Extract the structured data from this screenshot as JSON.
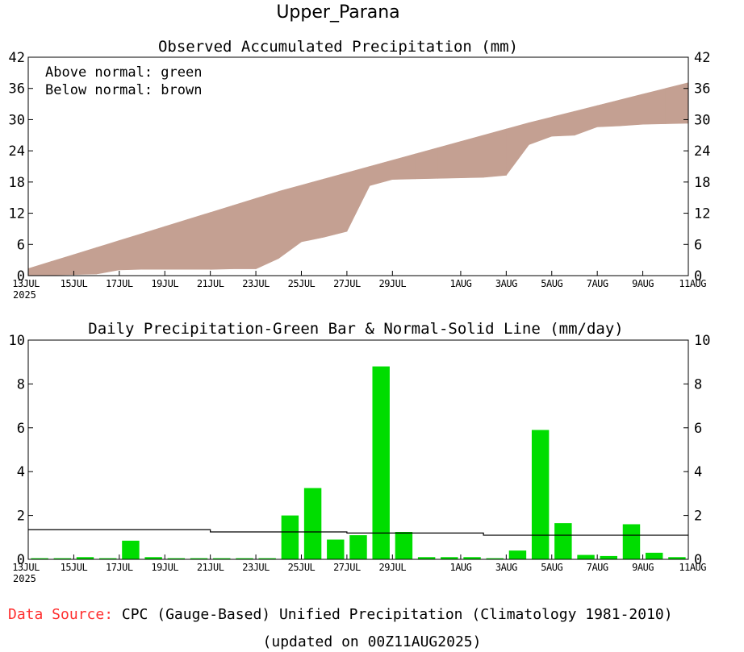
{
  "title": "Upper_Parana",
  "footer": {
    "source_label": "Data Source:",
    "source_text": " CPC (Gauge-Based) Unified Precipitation (Climatology 1981-2010)",
    "updated": "(updated on 00Z11AUG2025)"
  },
  "colors": {
    "below": "#c4a092",
    "above": "#00cc00",
    "bar": "#00dd00",
    "line": "#000000",
    "source_label": "#ff3030"
  },
  "chart_data": [
    {
      "type": "area",
      "title": "Observed Accumulated Precipitation (mm)",
      "legend_lines": [
        "Above normal: green",
        "Below normal: brown"
      ],
      "ylim": [
        0,
        42
      ],
      "yticks": [
        0,
        6,
        12,
        18,
        24,
        30,
        36,
        42
      ],
      "xlim": [
        0,
        29
      ],
      "x_ticks": [
        {
          "x": 0,
          "label": "13JUL"
        },
        {
          "x": 2,
          "label": "15JUL"
        },
        {
          "x": 4,
          "label": "17JUL"
        },
        {
          "x": 6,
          "label": "19JUL"
        },
        {
          "x": 8,
          "label": "21JUL"
        },
        {
          "x": 10,
          "label": "23JUL"
        },
        {
          "x": 12,
          "label": "25JUL"
        },
        {
          "x": 14,
          "label": "27JUL"
        },
        {
          "x": 16,
          "label": "29JUL"
        },
        {
          "x": 19,
          "label": "1AUG"
        },
        {
          "x": 21,
          "label": "3AUG"
        },
        {
          "x": 23,
          "label": "5AUG"
        },
        {
          "x": 25,
          "label": "7AUG"
        },
        {
          "x": 27,
          "label": "9AUG"
        },
        {
          "x": 29,
          "label": "11AUG"
        }
      ],
      "year_label": "2025",
      "series": [
        {
          "name": "Observed accumulated",
          "x": [
            0,
            1,
            2,
            3,
            4,
            5,
            6,
            7,
            8,
            9,
            10,
            11,
            12,
            13,
            14,
            15,
            16,
            17,
            18,
            19,
            20,
            21,
            22,
            23,
            24,
            25,
            26,
            27,
            28,
            29
          ],
          "values": [
            0.1,
            0.1,
            0.2,
            0.3,
            1.1,
            1.2,
            1.2,
            1.2,
            1.2,
            1.3,
            1.3,
            3.3,
            6.5,
            7.4,
            8.5,
            17.3,
            18.5,
            18.6,
            18.7,
            18.8,
            18.9,
            19.3,
            25.2,
            26.8,
            27.0,
            28.6,
            28.8,
            29.1,
            29.2,
            29.3
          ]
        },
        {
          "name": "Normal accumulated",
          "x": [
            0,
            1,
            2,
            3,
            4,
            5,
            6,
            7,
            8,
            9,
            10,
            11,
            12,
            13,
            14,
            15,
            16,
            17,
            18,
            19,
            20,
            21,
            22,
            23,
            24,
            25,
            26,
            27,
            28,
            29
          ],
          "values": [
            1.35,
            2.7,
            4.05,
            5.4,
            6.75,
            8.1,
            9.45,
            10.8,
            12.15,
            13.5,
            14.85,
            16.2,
            17.4,
            18.6,
            19.8,
            21.0,
            22.2,
            23.4,
            24.6,
            25.8,
            27.0,
            28.2,
            29.4,
            30.5,
            31.6,
            32.7,
            33.8,
            34.9,
            36.0,
            37.1
          ]
        }
      ]
    },
    {
      "type": "bar",
      "title": "Daily Precipitation-Green Bar & Normal-Solid Line (mm/day)",
      "ylim": [
        0,
        10
      ],
      "yticks": [
        0,
        2,
        4,
        6,
        8,
        10
      ],
      "xlim": [
        0,
        29
      ],
      "x_ticks": [
        {
          "x": 0,
          "label": "13JUL"
        },
        {
          "x": 2,
          "label": "15JUL"
        },
        {
          "x": 4,
          "label": "17JUL"
        },
        {
          "x": 6,
          "label": "19JUL"
        },
        {
          "x": 8,
          "label": "21JUL"
        },
        {
          "x": 10,
          "label": "23JUL"
        },
        {
          "x": 12,
          "label": "25JUL"
        },
        {
          "x": 14,
          "label": "27JUL"
        },
        {
          "x": 16,
          "label": "29JUL"
        },
        {
          "x": 19,
          "label": "1AUG"
        },
        {
          "x": 21,
          "label": "3AUG"
        },
        {
          "x": 23,
          "label": "5AUG"
        },
        {
          "x": 25,
          "label": "7AUG"
        },
        {
          "x": 27,
          "label": "9AUG"
        },
        {
          "x": 29,
          "label": "11AUG"
        }
      ],
      "year_label": "2025",
      "bars": {
        "start": [
          0,
          1,
          2,
          3,
          4,
          5,
          6,
          7,
          8,
          9,
          10,
          11,
          12,
          13,
          14,
          15,
          16,
          17,
          18,
          19,
          20,
          21,
          22,
          23,
          24,
          25,
          26,
          27,
          28
        ],
        "values": [
          0.05,
          0.05,
          0.1,
          0.05,
          0.85,
          0.1,
          0.05,
          0.05,
          0.05,
          0.05,
          0.05,
          2.0,
          3.25,
          0.9,
          1.1,
          8.8,
          1.25,
          0.1,
          0.1,
          0.1,
          0.05,
          0.4,
          5.9,
          1.65,
          0.2,
          0.15,
          1.6,
          0.3,
          0.1
        ]
      },
      "normal_line": {
        "x": [
          0,
          8,
          8,
          14,
          14,
          20,
          20,
          29
        ],
        "values": [
          1.35,
          1.35,
          1.25,
          1.25,
          1.2,
          1.2,
          1.1,
          1.1
        ]
      }
    }
  ]
}
